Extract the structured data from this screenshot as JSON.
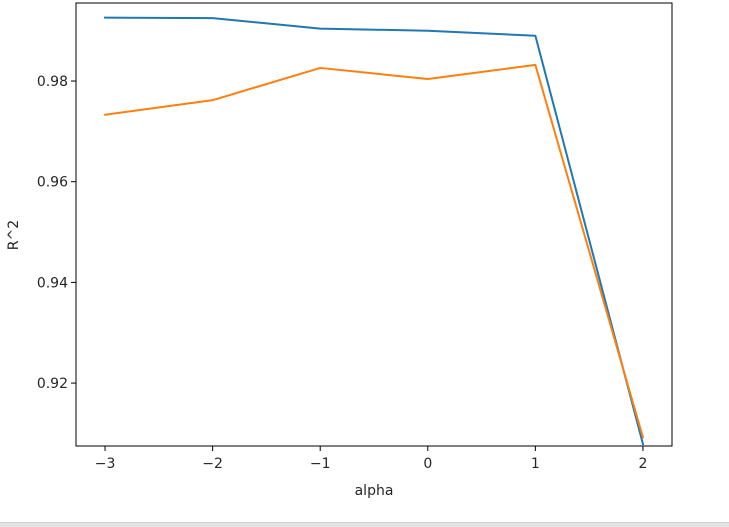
{
  "chart_data": {
    "type": "line",
    "title": "",
    "xlabel": "alpha",
    "ylabel": "R^2",
    "x": [
      -3,
      -2,
      -1,
      0,
      1,
      2
    ],
    "xticks": [
      -3,
      -2,
      -1,
      0,
      1,
      2
    ],
    "xtick_labels": [
      "−3",
      "−2",
      "−1",
      "0",
      "1",
      "2"
    ],
    "yticks": [
      0.92,
      0.94,
      0.96,
      0.98
    ],
    "ytick_labels": [
      "0.92",
      "0.94",
      "0.96",
      "0.98"
    ],
    "xlim": [
      -3.27,
      2.27
    ],
    "ylim": [
      0.9075,
      0.9955
    ],
    "grid": false,
    "series": [
      {
        "color": "#1f77b4",
        "values": [
          0.9926,
          0.9925,
          0.9904,
          0.99,
          0.989,
          0.9079
        ]
      },
      {
        "color": "#ff7f0e",
        "values": [
          0.9733,
          0.9762,
          0.9826,
          0.9804,
          0.9832,
          0.9092
        ]
      }
    ]
  }
}
